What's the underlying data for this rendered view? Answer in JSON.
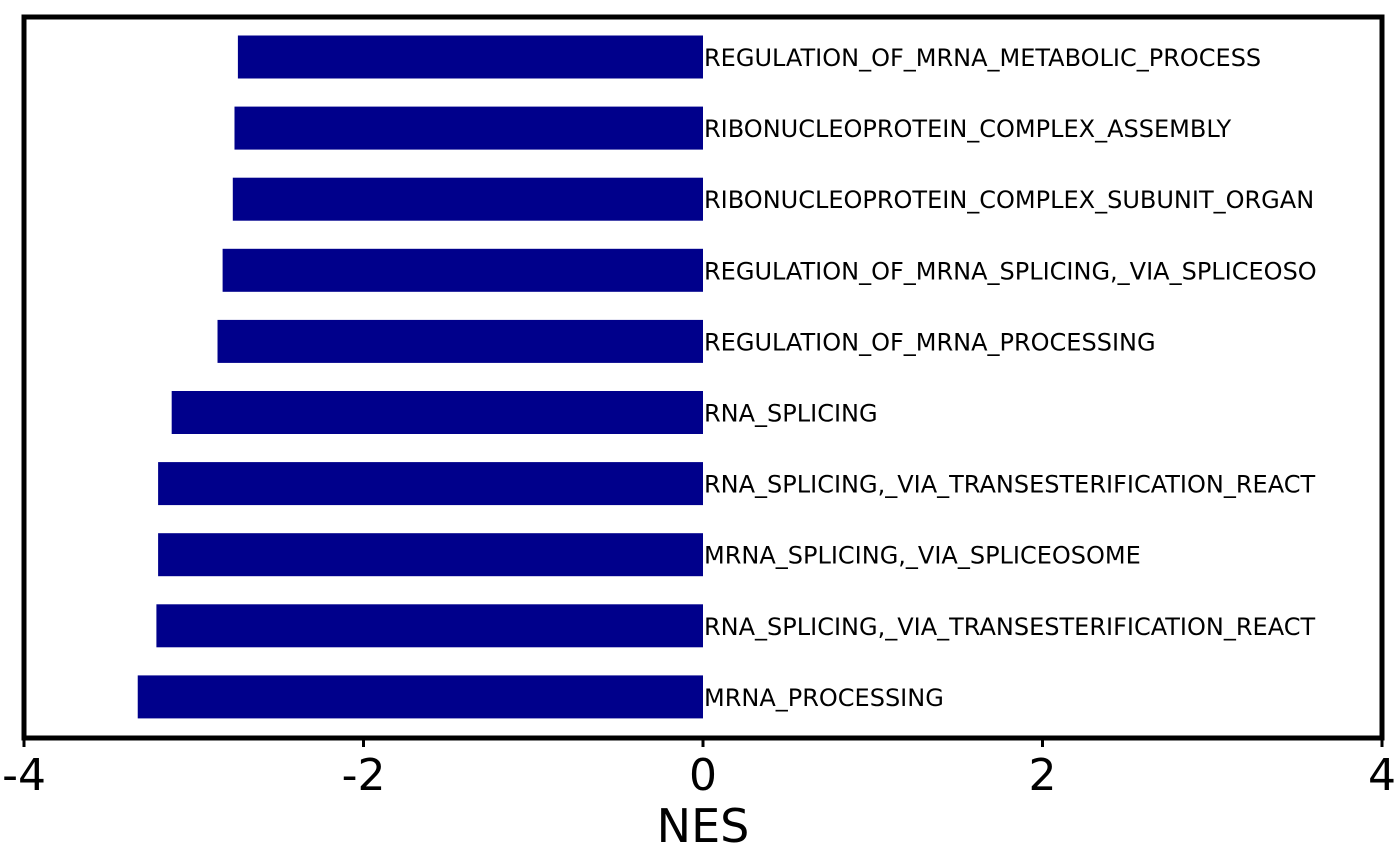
{
  "chart_data": {
    "type": "bar",
    "orientation": "horizontal",
    "xlabel": "NES",
    "ylabel": "",
    "xlim": [
      -4,
      4
    ],
    "xticks": [
      -4,
      -2,
      0,
      2,
      4
    ],
    "xtick_labels": [
      "-4",
      "-2",
      "0",
      "2",
      "4"
    ],
    "grid": false,
    "bar_color": "#00008B",
    "categories": [
      "REGULATION_OF_MRNA_METABOLIC_PROCESS",
      "RIBONUCLEOPROTEIN_COMPLEX_ASSEMBLY",
      "RIBONUCLEOPROTEIN_COMPLEX_SUBUNIT_ORGAN",
      "REGULATION_OF_MRNA_SPLICING,_VIA_SPLICEOSO",
      "REGULATION_OF_MRNA_PROCESSING",
      "RNA_SPLICING",
      "RNA_SPLICING,_VIA_TRANSESTERIFICATION_REACT",
      "MRNA_SPLICING,_VIA_SPLICEOSOME",
      "RNA_SPLICING,_VIA_TRANSESTERIFICATION_REACT",
      "MRNA_PROCESSING"
    ],
    "values": [
      -2.74,
      -2.76,
      -2.77,
      -2.83,
      -2.86,
      -3.13,
      -3.21,
      -3.21,
      -3.22,
      -3.33
    ]
  }
}
